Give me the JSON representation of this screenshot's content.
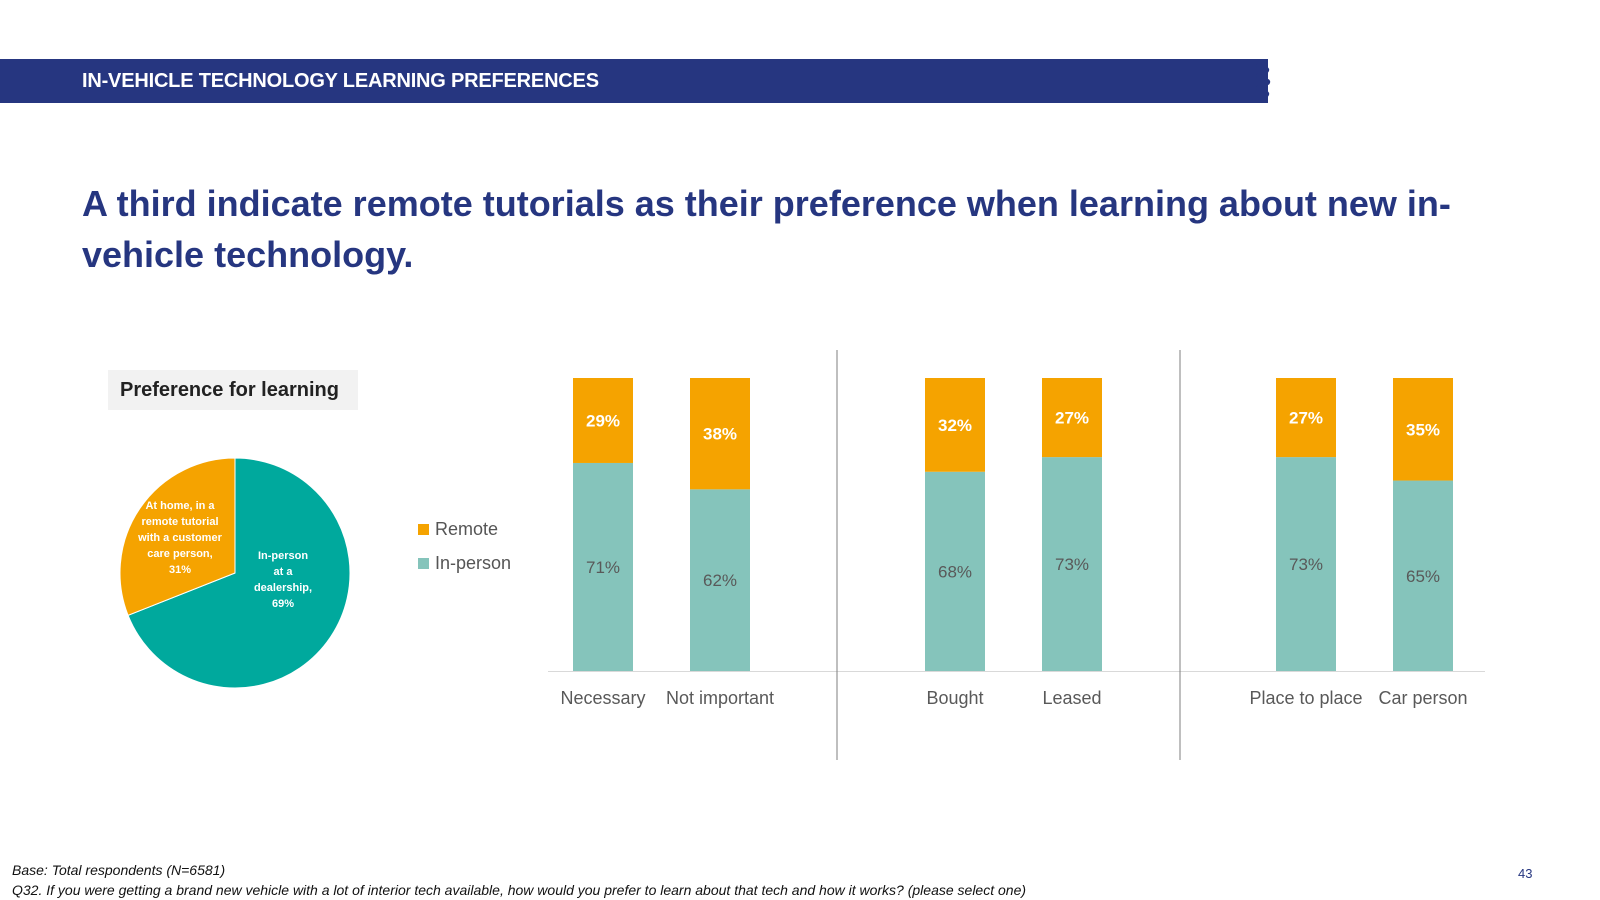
{
  "header": {
    "banner_title": "IN-VEHICLE TECHNOLOGY LEARNING PREFERENCES",
    "headline": "A third indicate remote tutorials as their preference when learning about new in-vehicle technology."
  },
  "pie": {
    "title": "Preference for learning",
    "slices": [
      {
        "label": "In-person at a dealership, 69%",
        "value": 69,
        "color": "#00a99d"
      },
      {
        "label": "At home, in a remote tutorial with a customer care person, 31%",
        "value": 31,
        "color": "#f5a300"
      }
    ],
    "label_inperson_lines": [
      "In-person",
      "at a",
      "dealership,",
      "69%"
    ],
    "label_remote_lines": [
      "At home, in a",
      "remote tutorial",
      "with a customer",
      "care person,",
      "31%"
    ]
  },
  "legend": {
    "remote": "Remote",
    "inperson": "In-person"
  },
  "colors": {
    "brand_navy": "#263680",
    "remote": "#f5a300",
    "inperson": "#85c4bb",
    "pie_inperson": "#00a99d"
  },
  "chart_data": {
    "type": "bar",
    "stacked": true,
    "percent_stacked": true,
    "categories": [
      "Necessary",
      "Not important",
      "Bought",
      "Leased",
      "Place to place",
      "Car person"
    ],
    "groups": [
      [
        "Necessary",
        "Not important"
      ],
      [
        "Bought",
        "Leased"
      ],
      [
        "Place to place",
        "Car person"
      ]
    ],
    "series": [
      {
        "name": "In-person",
        "values": [
          71,
          62,
          68,
          73,
          73,
          65
        ],
        "color": "#85c4bb"
      },
      {
        "name": "Remote",
        "values": [
          29,
          38,
          32,
          27,
          27,
          35
        ],
        "color": "#f5a300"
      }
    ],
    "value_labels_in": [
      "71%",
      "62%",
      "68%",
      "73%",
      "73%",
      "65%"
    ],
    "value_labels_remote": [
      "29%",
      "38%",
      "32%",
      "27%",
      "27%",
      "35%"
    ],
    "legend_position": "left",
    "grid": false
  },
  "footer": {
    "base": "Base: Total respondents (N=6581)",
    "question": "Q32. If you were getting a brand new vehicle with a lot of interior tech available, how would you prefer to learn about that tech and how it works? (please select one)",
    "page_number": "43"
  }
}
